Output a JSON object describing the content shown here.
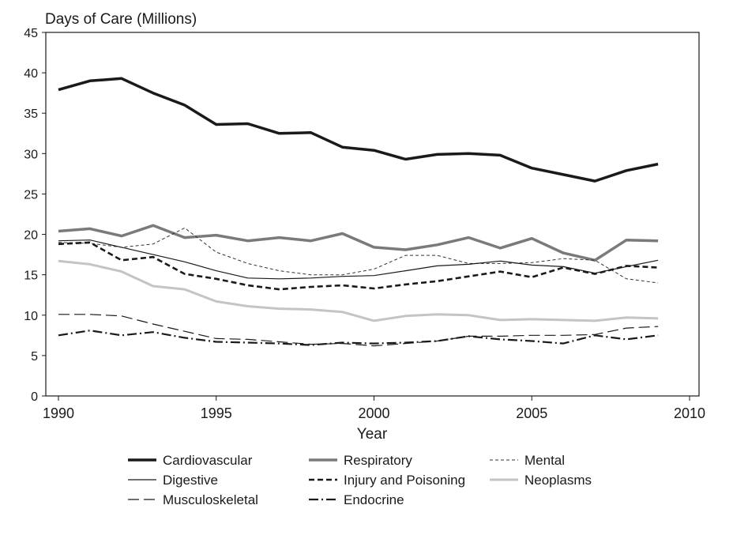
{
  "chart_data": {
    "type": "line",
    "ylabel": "Days of Care (Millions)",
    "xlabel": "Year",
    "xlim": [
      1989.6,
      2010.3
    ],
    "ylim": [
      0,
      45
    ],
    "xticks": [
      1990,
      1995,
      2000,
      2005,
      2010
    ],
    "yticks": [
      0,
      5,
      10,
      15,
      20,
      25,
      30,
      35,
      40,
      45
    ],
    "grid": false,
    "legend_position": "bottom",
    "x": [
      1990,
      1991,
      1992,
      1993,
      1994,
      1995,
      1996,
      1997,
      1998,
      1999,
      2000,
      2001,
      2002,
      2003,
      2004,
      2005,
      2006,
      2007,
      2008,
      2009
    ],
    "series": [
      {
        "name": "Cardiovascular",
        "color": "#1a1a1a",
        "width": 3.5,
        "dash": "",
        "values": [
          37.9,
          39.0,
          39.3,
          37.5,
          36.0,
          33.6,
          33.7,
          32.5,
          32.6,
          30.8,
          30.4,
          29.3,
          29.9,
          30.0,
          29.8,
          28.2,
          27.4,
          26.6,
          27.9,
          28.7
        ]
      },
      {
        "name": "Respiratory",
        "color": "#7a7a7a",
        "width": 3.5,
        "dash": "",
        "values": [
          20.4,
          20.7,
          19.8,
          21.1,
          19.6,
          19.9,
          19.2,
          19.6,
          19.2,
          20.1,
          18.4,
          18.1,
          18.7,
          19.6,
          18.3,
          19.5,
          17.7,
          16.8,
          19.3,
          19.2
        ]
      },
      {
        "name": "Mental",
        "color": "#333333",
        "width": 1,
        "dash": "4,3",
        "values": [
          19.0,
          18.9,
          18.4,
          18.8,
          20.8,
          17.8,
          16.4,
          15.5,
          15.0,
          15.0,
          15.7,
          17.4,
          17.4,
          16.4,
          16.4,
          16.5,
          17.0,
          16.8,
          14.5,
          14.0
        ]
      },
      {
        "name": "Digestive",
        "color": "#1a1a1a",
        "width": 1.2,
        "dash": "",
        "values": [
          19.2,
          19.3,
          18.4,
          17.5,
          16.6,
          15.5,
          14.6,
          14.5,
          14.6,
          14.8,
          14.9,
          15.5,
          16.1,
          16.3,
          16.7,
          16.2,
          16.0,
          15.2,
          16.0,
          16.8
        ]
      },
      {
        "name": "Injury and Poisoning",
        "color": "#1a1a1a",
        "width": 2.6,
        "dash": "7,4",
        "values": [
          18.8,
          19.0,
          16.8,
          17.2,
          15.1,
          14.5,
          13.7,
          13.2,
          13.5,
          13.7,
          13.3,
          13.8,
          14.2,
          14.8,
          15.4,
          14.7,
          15.9,
          15.1,
          16.1,
          15.9
        ]
      },
      {
        "name": "Neoplasms",
        "color": "#c4c4c4",
        "width": 3,
        "dash": "",
        "values": [
          16.7,
          16.3,
          15.4,
          13.6,
          13.2,
          11.7,
          11.1,
          10.8,
          10.7,
          10.4,
          9.3,
          9.9,
          10.1,
          10.0,
          9.4,
          9.5,
          9.4,
          9.3,
          9.7,
          9.6
        ]
      },
      {
        "name": "Musculoskeletal",
        "color": "#1a1a1a",
        "width": 1.2,
        "dash": "14,6",
        "values": [
          10.1,
          10.1,
          9.9,
          8.9,
          8.0,
          7.1,
          7.0,
          6.7,
          6.4,
          6.5,
          6.2,
          6.5,
          6.8,
          7.4,
          7.4,
          7.5,
          7.5,
          7.6,
          8.4,
          8.6
        ]
      },
      {
        "name": "Endocrine",
        "color": "#1a1a1a",
        "width": 2.2,
        "dash": "12,4,2,4",
        "values": [
          7.5,
          8.1,
          7.5,
          7.9,
          7.2,
          6.7,
          6.6,
          6.5,
          6.3,
          6.6,
          6.5,
          6.6,
          6.8,
          7.4,
          7.0,
          6.8,
          6.5,
          7.5,
          7.0,
          7.5
        ]
      }
    ]
  }
}
